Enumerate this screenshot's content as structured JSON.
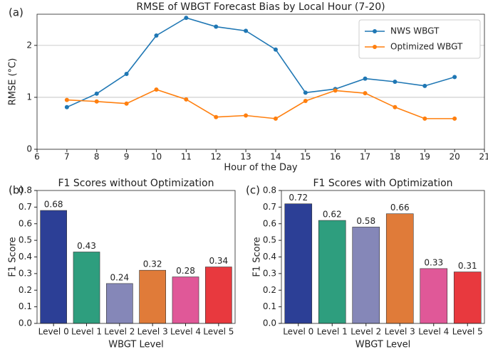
{
  "chart_data": [
    {
      "type": "line",
      "panel_label": "(a)",
      "title": "RMSE of WBGT Forecast Bias by Local Hour (7-20)",
      "x_label": "Hour of the Day",
      "y_label": "RMSE (°C)",
      "x": [
        7,
        8,
        9,
        10,
        11,
        12,
        13,
        14,
        15,
        16,
        17,
        18,
        19,
        20
      ],
      "series": [
        {
          "name": "NWS WBGT",
          "color": "#1f77b4",
          "values": [
            0.81,
            1.07,
            1.45,
            2.19,
            2.53,
            2.36,
            2.28,
            1.92,
            1.09,
            1.16,
            1.36,
            1.3,
            1.22,
            1.39
          ]
        },
        {
          "name": "Optimized WBGT",
          "color": "#ff7f0e",
          "values": [
            0.95,
            0.92,
            0.88,
            1.15,
            0.96,
            0.62,
            0.65,
            0.59,
            0.93,
            1.13,
            1.08,
            0.81,
            0.59,
            0.59
          ]
        }
      ],
      "xlim": [
        6,
        21
      ],
      "xticks": [
        6,
        7,
        8,
        9,
        10,
        11,
        12,
        13,
        14,
        15,
        16,
        17,
        18,
        19,
        20,
        21
      ],
      "ylim": [
        0,
        2.6
      ],
      "yticks": [
        0,
        1,
        2
      ],
      "grid": true,
      "legend": "upper right"
    },
    {
      "type": "bar",
      "panel_label": "(b)",
      "title": "F1 Scores without Optimization",
      "x_label": "WBGT Level",
      "y_label": "F1 Score",
      "categories": [
        "Level 0",
        "Level 1",
        "Level 2",
        "Level 3",
        "Level 4",
        "Level 5"
      ],
      "values": [
        0.68,
        0.43,
        0.24,
        0.32,
        0.28,
        0.34
      ],
      "colors": [
        "#2c3f96",
        "#2e9e7e",
        "#8587b8",
        "#e07b39",
        "#e05898",
        "#e8393e"
      ],
      "ylim": [
        0,
        0.8
      ],
      "yticks": [
        {
          "value": 0,
          "label": "0.0"
        },
        0.1,
        0.2,
        0.3,
        0.4,
        0.5,
        0.6,
        0.7,
        0.8
      ]
    },
    {
      "type": "bar",
      "panel_label": "(c)",
      "title": "F1 Scores with Optimization",
      "x_label": "WBGT Level",
      "y_label": "F1 Score",
      "categories": [
        "Level 0",
        "Level 1",
        "Level 2",
        "Level 3",
        "Level 4",
        "Level 5"
      ],
      "values": [
        0.72,
        0.62,
        0.58,
        0.66,
        0.33,
        0.31
      ],
      "colors": [
        "#2c3f96",
        "#2e9e7e",
        "#8587b8",
        "#e07b39",
        "#e05898",
        "#e8393e"
      ],
      "ylim": [
        0,
        0.8
      ],
      "yticks": [
        {
          "value": 0,
          "label": "0.0"
        },
        0.1,
        0.2,
        0.3,
        0.4,
        0.5,
        0.6,
        0.7,
        0.8
      ]
    }
  ]
}
